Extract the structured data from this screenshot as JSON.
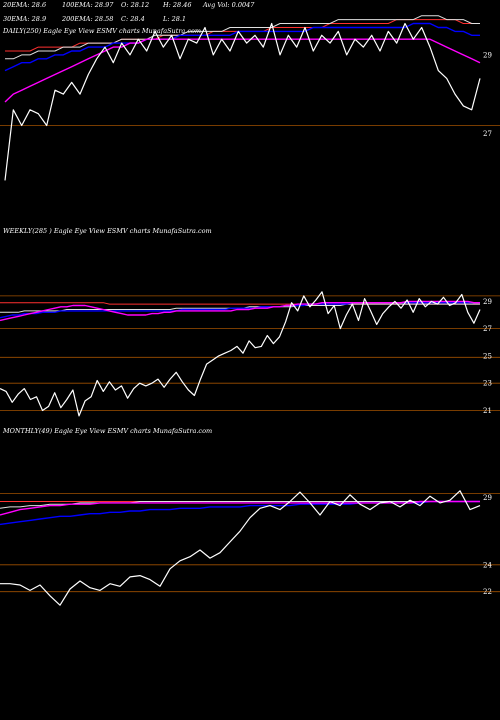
{
  "colors": {
    "background": "#000000",
    "price": "#ffffff",
    "ema20": "#ff00ff",
    "ema30": "#0000ff",
    "ema50": "#e0e0e0",
    "ema100": "#ffffcc",
    "ema200": "#ffffff",
    "ema_red": "#ff3030",
    "level": "#a05000"
  },
  "header": {
    "ema20": "20EMA: 28.6",
    "ema100": "100EMA: 28.97",
    "o": "O: 28.12",
    "h": "H: 28.46",
    "avg_vol": "Avg Vol: 0.0047",
    "ema30": "30EMA: 28.9",
    "ema200": "200EMA: 28.58",
    "c": "C: 28.4",
    "l": "L: 28.1"
  },
  "chart_data": [
    {
      "type": "line",
      "title": "DAILY(250) Eagle Eye View ESMV charts MunafaSutra.com",
      "y_ticks": [
        {
          "label": "29",
          "value": 29
        },
        {
          "label": "27",
          "value": 27
        }
      ],
      "level_lines": [
        27.2
      ],
      "series": [
        {
          "values": [
            25.8,
            27.6,
            27.2,
            27.6,
            27.5,
            27.2,
            28.1,
            28.0,
            28.3,
            28.0,
            28.5,
            28.9,
            29.2,
            28.8,
            29.3,
            29.0,
            29.4,
            29.1,
            29.6,
            29.2,
            29.5,
            28.9,
            29.4,
            29.3,
            29.7,
            29.0,
            29.4,
            29.1,
            29.6,
            29.3,
            29.5,
            29.2,
            29.8,
            29.0,
            29.5,
            29.2,
            29.7,
            29.1,
            29.5,
            29.3,
            29.6,
            29.0,
            29.4,
            29.2,
            29.5,
            29.1,
            29.6,
            29.3,
            29.8,
            29.4,
            29.7,
            29.2,
            28.6,
            28.4,
            28.0,
            27.7,
            27.6,
            28.4
          ]
        },
        {
          "values": [
            27.8,
            28.0,
            28.1,
            28.2,
            28.3,
            28.4,
            28.5,
            28.6,
            28.7,
            28.8,
            28.9,
            29.0,
            29.1,
            29.2,
            29.2,
            29.3,
            29.3,
            29.4,
            29.4,
            29.4,
            29.4,
            29.4,
            29.4,
            29.4,
            29.4,
            29.4,
            29.4,
            29.4,
            29.4,
            29.4,
            29.4,
            29.4,
            29.4,
            29.4,
            29.4,
            29.4,
            29.4,
            29.4,
            29.4,
            29.4,
            29.4,
            29.4,
            29.4,
            29.4,
            29.4,
            29.4,
            29.4,
            29.4,
            29.4,
            29.4,
            29.4,
            29.4,
            29.3,
            29.2,
            29.1,
            29.0,
            28.9,
            28.8
          ]
        },
        {
          "values": [
            28.6,
            28.7,
            28.8,
            28.8,
            28.9,
            28.9,
            29.0,
            29.0,
            29.1,
            29.1,
            29.2,
            29.2,
            29.2,
            29.3,
            29.3,
            29.3,
            29.3,
            29.4,
            29.4,
            29.4,
            29.4,
            29.5,
            29.5,
            29.5,
            29.5,
            29.5,
            29.5,
            29.5,
            29.6,
            29.6,
            29.6,
            29.6,
            29.6,
            29.6,
            29.6,
            29.6,
            29.6,
            29.7,
            29.7,
            29.7,
            29.7,
            29.7,
            29.7,
            29.7,
            29.7,
            29.7,
            29.7,
            29.7,
            29.7,
            29.8,
            29.8,
            29.8,
            29.7,
            29.7,
            29.6,
            29.6,
            29.5,
            29.5
          ]
        },
        {
          "values": [
            28.9,
            28.9,
            29.0,
            29.0,
            29.1,
            29.1,
            29.1,
            29.2,
            29.2,
            29.2,
            29.3,
            29.3,
            29.3,
            29.3,
            29.4,
            29.4,
            29.4,
            29.4,
            29.5,
            29.5,
            29.5,
            29.5,
            29.6,
            29.6,
            29.6,
            29.6,
            29.6,
            29.7,
            29.7,
            29.7,
            29.7,
            29.7,
            29.7,
            29.8,
            29.8,
            29.8,
            29.8,
            29.8,
            29.8,
            29.8,
            29.9,
            29.9,
            29.9,
            29.9,
            29.9,
            29.9,
            29.9,
            29.9,
            29.9,
            29.9,
            30.0,
            30.0,
            30.0,
            29.9,
            29.9,
            29.9,
            29.8,
            29.8
          ]
        },
        {
          "values": [
            29.1,
            29.1,
            29.1,
            29.1,
            29.2,
            29.2,
            29.2,
            29.2,
            29.2,
            29.3,
            29.3,
            29.3,
            29.3,
            29.3,
            29.4,
            29.4,
            29.4,
            29.4,
            29.4,
            29.5,
            29.5,
            29.5,
            29.5,
            29.5,
            29.5,
            29.6,
            29.6,
            29.6,
            29.6,
            29.6,
            29.6,
            29.6,
            29.7,
            29.7,
            29.7,
            29.7,
            29.7,
            29.7,
            29.7,
            29.8,
            29.8,
            29.8,
            29.8,
            29.8,
            29.8,
            29.8,
            29.8,
            29.9,
            29.9,
            29.9,
            29.9,
            29.9,
            29.9,
            29.9,
            29.9,
            29.8,
            29.8,
            29.8
          ]
        }
      ]
    },
    {
      "type": "line",
      "title": "WEEKLY(285 ) Eagle Eye View ESMV charts MunafaSutra.com",
      "y_ticks": [
        {
          "label": "29",
          "value": 29
        },
        {
          "label": "27",
          "value": 27
        },
        {
          "label": "25",
          "value": 25
        },
        {
          "label": "23",
          "value": 23
        },
        {
          "label": "21",
          "value": 21
        }
      ],
      "level_lines": [
        29.4,
        27.0,
        24.9,
        23.0,
        21.0
      ],
      "series": [
        {
          "values": [
            22.6,
            22.4,
            21.6,
            22.2,
            22.6,
            21.8,
            22.0,
            21.0,
            21.3,
            22.3,
            21.2,
            21.8,
            22.5,
            20.6,
            21.7,
            22.0,
            23.2,
            22.4,
            23.1,
            22.5,
            22.8,
            21.9,
            22.6,
            23.0,
            22.8,
            23.0,
            23.3,
            22.7,
            23.3,
            23.8,
            23.1,
            22.5,
            22.1,
            23.3,
            24.4,
            24.7,
            25.0,
            25.2,
            25.4,
            25.7,
            25.2,
            26.1,
            25.6,
            25.7,
            26.5,
            25.9,
            26.4,
            27.5,
            28.9,
            28.3,
            29.4,
            28.6,
            29.1,
            29.7,
            28.1,
            28.7,
            27.0,
            28.0,
            28.8,
            27.6,
            29.2,
            28.3,
            27.3,
            28.1,
            28.6,
            29.0,
            28.5,
            29.1,
            28.2,
            29.2,
            28.6,
            29.0,
            28.8,
            29.3,
            28.7,
            28.9,
            29.5,
            28.2,
            27.4,
            28.4
          ]
        },
        {
          "values": [
            27.6,
            27.7,
            27.8,
            27.9,
            28.0,
            28.1,
            28.2,
            28.3,
            28.4,
            28.5,
            28.6,
            28.6,
            28.7,
            28.7,
            28.7,
            28.6,
            28.5,
            28.4,
            28.3,
            28.2,
            28.1,
            28.0,
            28.0,
            28.0,
            28.0,
            28.1,
            28.1,
            28.2,
            28.2,
            28.3,
            28.3,
            28.3,
            28.3,
            28.3,
            28.3,
            28.3,
            28.3,
            28.3,
            28.3,
            28.4,
            28.4,
            28.4,
            28.5,
            28.5,
            28.5,
            28.6,
            28.6,
            28.7,
            28.7,
            28.8,
            28.8,
            28.8,
            28.8,
            28.9,
            28.9,
            28.9,
            28.9,
            28.9,
            28.9,
            28.9,
            28.9,
            28.9,
            28.9,
            28.9,
            28.9,
            28.9,
            28.9,
            29.0,
            29.0,
            29.0,
            29.0,
            29.0,
            29.0,
            29.0,
            29.0,
            29.0,
            29.0,
            29.0,
            28.9,
            28.9
          ]
        },
        {
          "values": [
            27.8,
            27.9,
            28.0,
            28.0,
            28.1,
            28.1,
            28.1,
            28.2,
            28.2,
            28.2,
            28.3,
            28.3,
            28.3,
            28.3,
            28.3,
            28.3,
            28.3,
            28.3,
            28.3,
            28.3,
            28.3,
            28.3,
            28.3,
            28.3,
            28.3,
            28.3,
            28.3,
            28.3,
            28.3,
            28.3,
            28.4,
            28.4,
            28.4,
            28.4,
            28.4,
            28.4,
            28.4,
            28.4,
            28.5,
            28.5,
            28.5,
            28.5,
            28.5,
            28.6,
            28.6,
            28.6,
            28.6,
            28.7,
            28.7,
            28.7,
            28.7,
            28.8,
            28.8,
            28.8,
            28.8,
            28.8,
            28.8,
            28.8,
            28.9,
            28.9,
            28.9,
            28.9,
            28.9,
            28.9,
            28.9,
            28.9,
            28.9,
            28.9,
            28.9,
            28.9,
            28.9,
            28.9,
            28.9,
            28.9,
            28.9,
            28.9,
            28.9,
            28.9,
            28.9,
            28.9
          ]
        },
        {
          "values": [
            28.2,
            28.2,
            28.2,
            28.2,
            28.3,
            28.3,
            28.3,
            28.3,
            28.3,
            28.3,
            28.3,
            28.4,
            28.4,
            28.4,
            28.4,
            28.4,
            28.4,
            28.4,
            28.4,
            28.4,
            28.4,
            28.4,
            28.4,
            28.4,
            28.4,
            28.4,
            28.4,
            28.4,
            28.4,
            28.5,
            28.5,
            28.5,
            28.5,
            28.5,
            28.5,
            28.5,
            28.5,
            28.5,
            28.5,
            28.5,
            28.5,
            28.6,
            28.6,
            28.6,
            28.6,
            28.6,
            28.6,
            28.6,
            28.6,
            28.7,
            28.7,
            28.7,
            28.7,
            28.7,
            28.7,
            28.7,
            28.7,
            28.8,
            28.8,
            28.8,
            28.8,
            28.8,
            28.8,
            28.8,
            28.8,
            28.8,
            28.8,
            28.8,
            28.8,
            28.8,
            28.8,
            28.8,
            28.8,
            28.8,
            28.8,
            28.8,
            28.8,
            28.8,
            28.8,
            28.8
          ]
        },
        {
          "values": [
            28.9,
            28.9,
            28.9,
            28.9,
            28.9,
            28.9,
            28.9,
            28.9,
            28.9,
            28.9,
            28.9,
            28.9,
            28.9,
            28.9,
            28.9,
            28.9,
            28.9,
            28.9,
            28.8,
            28.8,
            28.8,
            28.8,
            28.8,
            28.8,
            28.8,
            28.8,
            28.8,
            28.8,
            28.8,
            28.8,
            28.8,
            28.8,
            28.8,
            28.8,
            28.8,
            28.8,
            28.8,
            28.8,
            28.8,
            28.8,
            28.8,
            28.8,
            28.8,
            28.8,
            28.8,
            28.8,
            28.8,
            28.8,
            28.8,
            28.8,
            28.8,
            28.8,
            28.8,
            28.8,
            28.8,
            28.8,
            28.8,
            28.8,
            28.8,
            28.8,
            28.8,
            28.8,
            28.8,
            28.8,
            28.8,
            28.8,
            28.8,
            28.8,
            28.8,
            28.8,
            28.8,
            28.8,
            28.8,
            28.8,
            28.8,
            28.8,
            28.8,
            28.8,
            28.8,
            28.8
          ]
        }
      ]
    },
    {
      "type": "line",
      "title": "MONTHLY(49) Eagle Eye View ESMV charts MunafaSutra.com",
      "y_ticks": [
        {
          "label": "29",
          "value": 29
        },
        {
          "label": "24",
          "value": 24
        },
        {
          "label": "22",
          "value": 22
        }
      ],
      "level_lines": [
        29.3,
        24.0,
        22.0
      ],
      "series": [
        {
          "values": [
            22.6,
            22.6,
            22.5,
            22.1,
            22.5,
            21.7,
            21.0,
            22.2,
            22.8,
            22.3,
            22.1,
            22.6,
            22.4,
            23.1,
            23.2,
            22.9,
            22.4,
            23.7,
            24.3,
            24.6,
            25.1,
            24.5,
            24.9,
            25.7,
            26.5,
            27.5,
            28.2,
            28.4,
            28.1,
            28.7,
            29.4,
            28.6,
            27.7,
            28.7,
            28.4,
            29.2,
            28.5,
            28.1,
            28.6,
            28.7,
            28.3,
            28.8,
            28.4,
            29.1,
            28.6,
            28.8,
            29.5,
            28.1,
            28.4
          ]
        },
        {
          "values": [
            27.7,
            27.9,
            28.1,
            28.2,
            28.3,
            28.4,
            28.4,
            28.5,
            28.5,
            28.5,
            28.6,
            28.6,
            28.6,
            28.6,
            28.6,
            28.6,
            28.6,
            28.6,
            28.6,
            28.6,
            28.6,
            28.6,
            28.6,
            28.6,
            28.6,
            28.6,
            28.6,
            28.6,
            28.6,
            28.6,
            28.6,
            28.6,
            28.6,
            28.6,
            28.6,
            28.6,
            28.6,
            28.6,
            28.6,
            28.6,
            28.6,
            28.6,
            28.7,
            28.7,
            28.7,
            28.7,
            28.7,
            28.7,
            28.7
          ]
        },
        {
          "values": [
            27.0,
            27.1,
            27.2,
            27.3,
            27.4,
            27.5,
            27.6,
            27.6,
            27.7,
            27.8,
            27.8,
            27.9,
            27.9,
            28.0,
            28.0,
            28.1,
            28.1,
            28.1,
            28.2,
            28.2,
            28.2,
            28.3,
            28.3,
            28.3,
            28.3,
            28.4,
            28.4,
            28.4,
            28.4,
            28.4,
            28.5,
            28.5,
            28.5,
            28.5,
            28.5,
            28.5,
            28.6,
            28.6,
            28.6,
            28.6,
            28.6,
            28.6,
            28.6,
            28.7,
            28.7,
            28.7,
            28.7,
            28.7,
            28.7
          ]
        },
        {
          "values": [
            28.2,
            28.3,
            28.3,
            28.4,
            28.4,
            28.5,
            28.5,
            28.5,
            28.6,
            28.6,
            28.6,
            28.6,
            28.6,
            28.6,
            28.7,
            28.7,
            28.7,
            28.7,
            28.7,
            28.7,
            28.7,
            28.7,
            28.7,
            28.7,
            28.7,
            28.7,
            28.7,
            28.7,
            28.7,
            28.7,
            28.7,
            28.7,
            28.7,
            28.7,
            28.7,
            28.7,
            28.7,
            28.7,
            28.7,
            28.7,
            28.7,
            28.7,
            28.7,
            28.7,
            28.7,
            28.7,
            28.7,
            28.7,
            28.7
          ]
        },
        {
          "values": [
            28.7,
            28.7,
            28.7,
            28.7,
            28.7,
            28.7,
            28.7,
            28.7,
            28.7,
            28.7,
            28.7,
            28.7,
            28.7,
            28.7,
            28.7,
            28.7,
            28.7,
            28.7,
            28.7,
            28.7,
            28.7,
            28.7,
            28.7,
            28.7,
            28.7,
            28.7,
            28.7,
            28.7,
            28.7,
            28.7,
            28.7,
            28.7,
            28.7,
            28.7,
            28.7,
            28.7,
            28.7,
            28.7,
            28.7,
            28.7,
            28.7,
            28.7,
            28.7,
            28.7,
            28.7,
            28.7,
            28.7,
            28.7,
            28.7
          ]
        }
      ]
    }
  ]
}
